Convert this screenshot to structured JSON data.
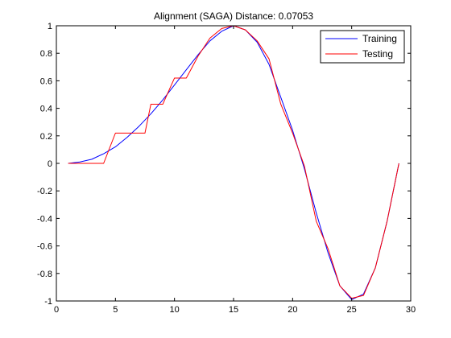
{
  "chart_data": {
    "type": "line",
    "title": "Alignment (SAGA) Distance:  0.07053",
    "xlabel": "",
    "ylabel": "",
    "xlim": [
      0,
      30
    ],
    "ylim": [
      -1,
      1
    ],
    "xticks": [
      0,
      5,
      10,
      15,
      20,
      25,
      30
    ],
    "yticks": [
      -1,
      -0.8,
      -0.6,
      -0.4,
      -0.2,
      0,
      0.2,
      0.4,
      0.6,
      0.8,
      1
    ],
    "xtick_labels": [
      "0",
      "5",
      "10",
      "15",
      "20",
      "25",
      "30"
    ],
    "ytick_labels": [
      "-1",
      "-0.8",
      "-0.6",
      "-0.4",
      "-0.2",
      "0",
      "0.2",
      "0.4",
      "0.6",
      "0.8",
      "1"
    ],
    "grid": false,
    "legend_position": "top-right",
    "series": [
      {
        "name": "Training",
        "color": "#0000ff",
        "x": [
          1,
          2,
          3,
          4,
          5,
          6,
          7,
          8,
          9,
          10,
          11,
          12,
          13,
          14,
          15,
          16,
          17,
          18,
          19,
          20,
          21,
          22,
          23,
          24,
          25,
          26,
          27,
          28,
          29
        ],
        "y": [
          0,
          0.01,
          0.03,
          0.07,
          0.12,
          0.19,
          0.27,
          0.36,
          0.46,
          0.57,
          0.68,
          0.79,
          0.89,
          0.96,
          1.0,
          0.97,
          0.88,
          0.72,
          0.48,
          0.24,
          -0.04,
          -0.36,
          -0.65,
          -0.89,
          -0.99,
          -0.95,
          -0.76,
          -0.42,
          0.0
        ]
      },
      {
        "name": "Testing",
        "color": "#ff0000",
        "x": [
          1,
          2,
          3,
          4,
          5,
          5.01,
          6,
          7,
          7.5,
          8,
          8.01,
          9,
          9.01,
          10,
          10.01,
          11,
          12,
          13,
          14,
          15,
          16,
          17,
          18,
          19,
          20,
          21,
          22,
          23,
          24,
          25,
          26,
          27,
          28,
          29
        ],
        "y": [
          0,
          0,
          0,
          0,
          0.22,
          0.22,
          0.22,
          0.22,
          0.22,
          0.43,
          0.43,
          0.43,
          0.43,
          0.62,
          0.62,
          0.62,
          0.78,
          0.91,
          0.98,
          1.0,
          0.97,
          0.89,
          0.76,
          0.43,
          0.22,
          -0.02,
          -0.42,
          -0.62,
          -0.89,
          -0.98,
          -0.96,
          -0.76,
          -0.42,
          0.0
        ]
      }
    ]
  }
}
